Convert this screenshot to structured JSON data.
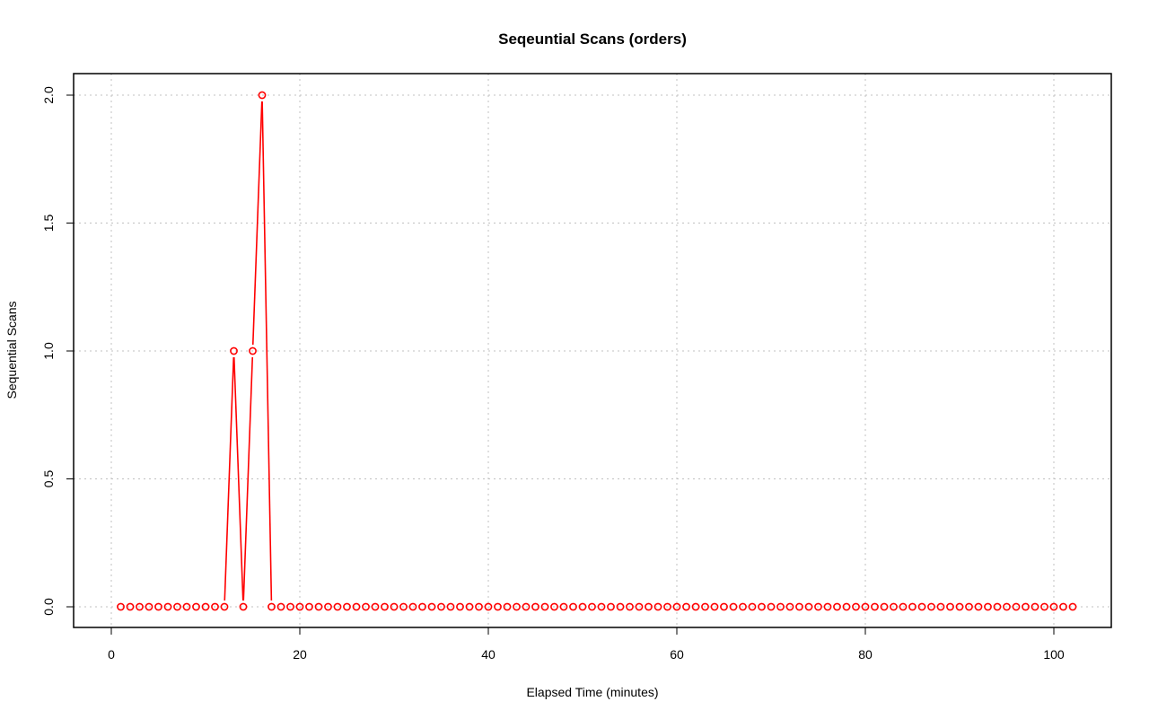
{
  "chart_data": {
    "type": "line",
    "title": "Seqeuntial Scans (orders)",
    "xlabel": "Elapsed Time (minutes)",
    "ylabel": "Sequential Scans",
    "xlim": [
      0,
      102
    ],
    "ylim": [
      0,
      2
    ],
    "x_ticks": [
      0,
      20,
      40,
      60,
      80,
      100
    ],
    "y_ticks": [
      0.0,
      0.5,
      1.0,
      1.5,
      2.0
    ],
    "x_tick_labels": [
      "0",
      "20",
      "40",
      "60",
      "80",
      "100"
    ],
    "y_tick_labels": [
      "0.0",
      "0.5",
      "1.0",
      "1.5",
      "2.0"
    ],
    "grid": true,
    "series_color": "#ff0000",
    "grid_color": "#c0c0c0",
    "series": [
      {
        "x": [
          1,
          2,
          3,
          4,
          5,
          6,
          7,
          8,
          9,
          10,
          11,
          12,
          13,
          14,
          15,
          16,
          17,
          18,
          19,
          20,
          21,
          22,
          23,
          24,
          25,
          26,
          27,
          28,
          29,
          30,
          31,
          32,
          33,
          34,
          35,
          36,
          37,
          38,
          39,
          40,
          41,
          42,
          43,
          44,
          45,
          46,
          47,
          48,
          49,
          50,
          51,
          52,
          53,
          54,
          55,
          56,
          57,
          58,
          59,
          60,
          61,
          62,
          63,
          64,
          65,
          66,
          67,
          68,
          69,
          70,
          71,
          72,
          73,
          74,
          75,
          76,
          77,
          78,
          79,
          80,
          81,
          82,
          83,
          84,
          85,
          86,
          87,
          88,
          89,
          90,
          91,
          92,
          93,
          94,
          95,
          96,
          97,
          98,
          99,
          100,
          101,
          102
        ],
        "values": [
          0,
          0,
          0,
          0,
          0,
          0,
          0,
          0,
          0,
          0,
          0,
          0,
          1,
          0,
          1,
          2,
          0,
          0,
          0,
          0,
          0,
          0,
          0,
          0,
          0,
          0,
          0,
          0,
          0,
          0,
          0,
          0,
          0,
          0,
          0,
          0,
          0,
          0,
          0,
          0,
          0,
          0,
          0,
          0,
          0,
          0,
          0,
          0,
          0,
          0,
          0,
          0,
          0,
          0,
          0,
          0,
          0,
          0,
          0,
          0,
          0,
          0,
          0,
          0,
          0,
          0,
          0,
          0,
          0,
          0,
          0,
          0,
          0,
          0,
          0,
          0,
          0,
          0,
          0,
          0,
          0,
          0,
          0,
          0,
          0,
          0,
          0,
          0,
          0,
          0,
          0,
          0,
          0,
          0,
          0,
          0,
          0,
          0,
          0,
          0,
          0,
          0
        ]
      }
    ]
  }
}
